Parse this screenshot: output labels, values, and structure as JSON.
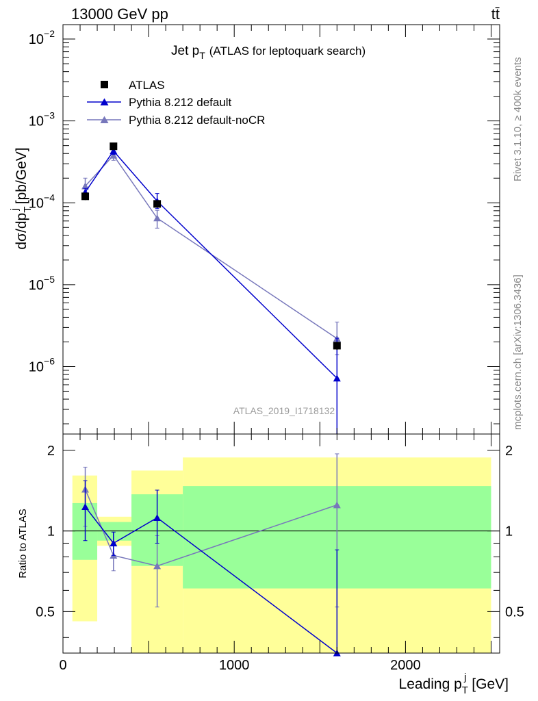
{
  "header": {
    "energy_label": "13000 GeV pp",
    "process_label": "tt̄"
  },
  "side_labels": {
    "rivet": "Rivet 3.1.10, ≥ 400k events",
    "mcplots": "mcplots.cern.ch [arXiv:1306.3436]"
  },
  "chart_data": [
    {
      "type": "scatter",
      "panel": "main",
      "title_main": "Jet p",
      "title_sub": "T",
      "title_rest": "(ATLAS for leptoquark search)",
      "ylabel": "dσ/dp",
      "ylabel_sub": "T",
      "ylabel_sup": "j",
      "ylabel_unit": "[pb/GeV]",
      "yscale": "log",
      "ylim": [
        1.5e-07,
        0.015
      ],
      "xlim": [
        0,
        2550
      ],
      "yticks": [
        {
          "value": 1e-06,
          "base": "10",
          "exp": "−6"
        },
        {
          "value": 1e-05,
          "base": "10",
          "exp": "−5"
        },
        {
          "value": 0.0001,
          "base": "10",
          "exp": "−4"
        },
        {
          "value": 0.001,
          "base": "10",
          "exp": "−3"
        },
        {
          "value": 0.01,
          "base": "10",
          "exp": "−2"
        }
      ],
      "watermark": "ATLAS_2019_I1718132",
      "legend_position": "top-left",
      "series": [
        {
          "name": "ATLAS",
          "marker": "square",
          "color": "#000000",
          "x": [
            130,
            295,
            550,
            1600
          ],
          "y": [
            0.00012,
            0.00049,
            9.7e-05,
            1.8e-06
          ],
          "yerr_low": [
            1.2e-05,
            4e-05,
            9e-06,
            2e-07
          ],
          "yerr_high": [
            1.2e-05,
            4e-05,
            9e-06,
            2e-07
          ]
        },
        {
          "name": "Pythia 8.212 default",
          "marker": "triangle",
          "color": "#0000cc",
          "x": [
            130,
            295,
            550,
            1600
          ],
          "y": [
            0.000135,
            0.00043,
            0.000105,
            7.2e-07
          ],
          "yerr_low": [
            1.5e-05,
            4e-05,
            2e-05,
            6e-07
          ],
          "yerr_high": [
            1.5e-05,
            4e-05,
            2.5e-05,
            1.5e-06
          ]
        },
        {
          "name": "Pythia 8.212 default-noCR",
          "marker": "triangle",
          "color": "#7777bb",
          "x": [
            130,
            295,
            550,
            1600
          ],
          "y": [
            0.00016,
            0.00038,
            6.5e-05,
            2.2e-06
          ],
          "yerr_low": [
            3e-05,
            5e-05,
            1.6e-05,
            8e-07
          ],
          "yerr_high": [
            4e-05,
            5e-05,
            1.6e-05,
            1.3e-06
          ]
        }
      ]
    },
    {
      "type": "scatter",
      "panel": "ratio",
      "ylabel": "Ratio to ATLAS",
      "xlabel": "Leading p",
      "xlabel_sub": "T",
      "xlabel_sup": "j",
      "xlabel_unit": "[GeV]",
      "yscale": "log",
      "ylim": [
        0.35,
        2.3
      ],
      "xlim": [
        0,
        2550
      ],
      "xticks": [
        {
          "value": 0,
          "label": "0"
        },
        {
          "value": 1000,
          "label": "1000"
        },
        {
          "value": 2000,
          "label": "2000"
        }
      ],
      "yticks": [
        {
          "value": 0.5,
          "label": "0.5"
        },
        {
          "value": 1,
          "label": "1"
        },
        {
          "value": 2,
          "label": "2"
        }
      ],
      "bands": [
        {
          "x_low": 55,
          "x_high": 200,
          "inner_low": 0.78,
          "inner_high": 1.27,
          "outer_low": 0.46,
          "outer_high": 1.61
        },
        {
          "x_low": 200,
          "x_high": 400,
          "inner_low": 0.92,
          "inner_high": 1.08,
          "outer_low": 0.88,
          "outer_high": 1.13
        },
        {
          "x_low": 400,
          "x_high": 700,
          "inner_low": 0.74,
          "inner_high": 1.37,
          "outer_low": 0.35,
          "outer_high": 1.68
        },
        {
          "x_low": 700,
          "x_high": 2500,
          "inner_low": 0.61,
          "inner_high": 1.47,
          "outer_low": 0.35,
          "outer_high": 1.88
        }
      ],
      "band_colors": {
        "inner": "#99ff99",
        "outer": "#ffff99"
      },
      "series": [
        {
          "name": "Pythia 8.212 default",
          "color": "#0000cc",
          "x": [
            130,
            295,
            550,
            1600
          ],
          "y": [
            1.23,
            0.9,
            1.12,
            0.35
          ],
          "yerr_low": [
            0.31,
            0.09,
            0.22,
            0.0
          ],
          "yerr_high": [
            0.31,
            0.09,
            0.3,
            0.5
          ]
        },
        {
          "name": "Pythia 8.212 default-noCR",
          "color": "#7777bb",
          "x": [
            130,
            295,
            550,
            1600
          ],
          "y": [
            1.43,
            0.81,
            0.74,
            1.25
          ],
          "yerr_low": [
            0.39,
            0.1,
            0.22,
            0.73
          ],
          "yerr_high": [
            0.3,
            0.1,
            0.22,
            0.69
          ]
        }
      ]
    }
  ]
}
